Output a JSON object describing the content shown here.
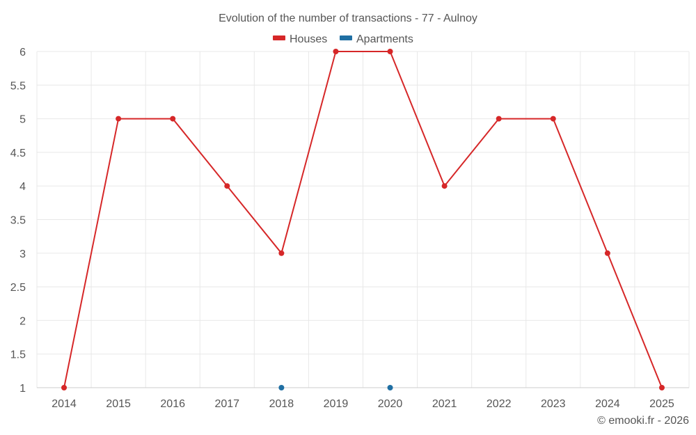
{
  "chart_data": {
    "type": "line",
    "title": "Evolution of the number of transactions - 77 - Aulnoy",
    "xlabel": "",
    "ylabel": "",
    "categories": [
      "2014",
      "2015",
      "2016",
      "2017",
      "2018",
      "2019",
      "2020",
      "2021",
      "2022",
      "2023",
      "2024",
      "2025"
    ],
    "ylim": [
      1,
      6
    ],
    "yticks": [
      "1",
      "1.5",
      "2",
      "2.5",
      "3",
      "3.5",
      "4",
      "4.5",
      "5",
      "5.5",
      "6"
    ],
    "grid": true,
    "legend_position": "top-center",
    "series": [
      {
        "name": "Houses",
        "color": "#d62728",
        "values": [
          1,
          5,
          5,
          4,
          3,
          6,
          6,
          4,
          5,
          5,
          3,
          1
        ]
      },
      {
        "name": "Apartments",
        "color": "#1f6fa3",
        "values": [
          null,
          null,
          null,
          null,
          1,
          null,
          1,
          null,
          null,
          null,
          null,
          null
        ]
      }
    ],
    "credit": "© emooki.fr - 2026"
  }
}
